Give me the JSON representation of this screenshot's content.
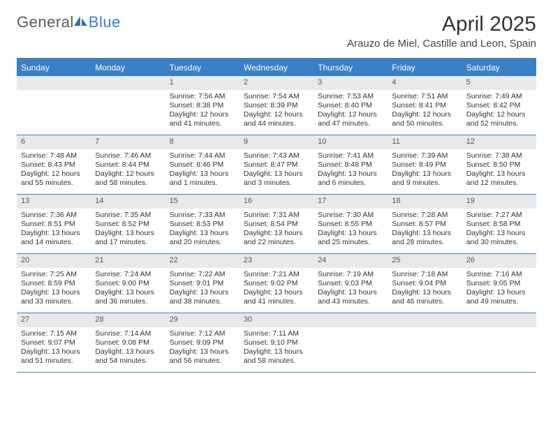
{
  "logo": {
    "text_general": "General",
    "text_blue": "Blue"
  },
  "title": "April 2025",
  "location": "Arauzo de Miel, Castille and Leon, Spain",
  "colors": {
    "header_bar": "#3b7fc4",
    "day_number_bg": "#e7e9eb",
    "text": "#333333",
    "logo_gray": "#5a5a5a",
    "logo_blue": "#3b7fc4",
    "background": "#ffffff"
  },
  "day_names": [
    "Sunday",
    "Monday",
    "Tuesday",
    "Wednesday",
    "Thursday",
    "Friday",
    "Saturday"
  ],
  "weeks": [
    [
      {
        "blank": true
      },
      {
        "blank": true
      },
      {
        "n": "1",
        "sunrise": "7:56 AM",
        "sunset": "8:38 PM",
        "daylight_h": 12,
        "daylight_m": 41
      },
      {
        "n": "2",
        "sunrise": "7:54 AM",
        "sunset": "8:39 PM",
        "daylight_h": 12,
        "daylight_m": 44
      },
      {
        "n": "3",
        "sunrise": "7:53 AM",
        "sunset": "8:40 PM",
        "daylight_h": 12,
        "daylight_m": 47
      },
      {
        "n": "4",
        "sunrise": "7:51 AM",
        "sunset": "8:41 PM",
        "daylight_h": 12,
        "daylight_m": 50
      },
      {
        "n": "5",
        "sunrise": "7:49 AM",
        "sunset": "8:42 PM",
        "daylight_h": 12,
        "daylight_m": 52
      }
    ],
    [
      {
        "n": "6",
        "sunrise": "7:48 AM",
        "sunset": "8:43 PM",
        "daylight_h": 12,
        "daylight_m": 55
      },
      {
        "n": "7",
        "sunrise": "7:46 AM",
        "sunset": "8:44 PM",
        "daylight_h": 12,
        "daylight_m": 58
      },
      {
        "n": "8",
        "sunrise": "7:44 AM",
        "sunset": "8:46 PM",
        "daylight_h": 13,
        "daylight_m": 1
      },
      {
        "n": "9",
        "sunrise": "7:43 AM",
        "sunset": "8:47 PM",
        "daylight_h": 13,
        "daylight_m": 3
      },
      {
        "n": "10",
        "sunrise": "7:41 AM",
        "sunset": "8:48 PM",
        "daylight_h": 13,
        "daylight_m": 6
      },
      {
        "n": "11",
        "sunrise": "7:39 AM",
        "sunset": "8:49 PM",
        "daylight_h": 13,
        "daylight_m": 9
      },
      {
        "n": "12",
        "sunrise": "7:38 AM",
        "sunset": "8:50 PM",
        "daylight_h": 13,
        "daylight_m": 12
      }
    ],
    [
      {
        "n": "13",
        "sunrise": "7:36 AM",
        "sunset": "8:51 PM",
        "daylight_h": 13,
        "daylight_m": 14
      },
      {
        "n": "14",
        "sunrise": "7:35 AM",
        "sunset": "8:52 PM",
        "daylight_h": 13,
        "daylight_m": 17
      },
      {
        "n": "15",
        "sunrise": "7:33 AM",
        "sunset": "8:53 PM",
        "daylight_h": 13,
        "daylight_m": 20
      },
      {
        "n": "16",
        "sunrise": "7:31 AM",
        "sunset": "8:54 PM",
        "daylight_h": 13,
        "daylight_m": 22
      },
      {
        "n": "17",
        "sunrise": "7:30 AM",
        "sunset": "8:55 PM",
        "daylight_h": 13,
        "daylight_m": 25
      },
      {
        "n": "18",
        "sunrise": "7:28 AM",
        "sunset": "8:57 PM",
        "daylight_h": 13,
        "daylight_m": 28
      },
      {
        "n": "19",
        "sunrise": "7:27 AM",
        "sunset": "8:58 PM",
        "daylight_h": 13,
        "daylight_m": 30
      }
    ],
    [
      {
        "n": "20",
        "sunrise": "7:25 AM",
        "sunset": "8:59 PM",
        "daylight_h": 13,
        "daylight_m": 33
      },
      {
        "n": "21",
        "sunrise": "7:24 AM",
        "sunset": "9:00 PM",
        "daylight_h": 13,
        "daylight_m": 36
      },
      {
        "n": "22",
        "sunrise": "7:22 AM",
        "sunset": "9:01 PM",
        "daylight_h": 13,
        "daylight_m": 38
      },
      {
        "n": "23",
        "sunrise": "7:21 AM",
        "sunset": "9:02 PM",
        "daylight_h": 13,
        "daylight_m": 41
      },
      {
        "n": "24",
        "sunrise": "7:19 AM",
        "sunset": "9:03 PM",
        "daylight_h": 13,
        "daylight_m": 43
      },
      {
        "n": "25",
        "sunrise": "7:18 AM",
        "sunset": "9:04 PM",
        "daylight_h": 13,
        "daylight_m": 46
      },
      {
        "n": "26",
        "sunrise": "7:16 AM",
        "sunset": "9:05 PM",
        "daylight_h": 13,
        "daylight_m": 49
      }
    ],
    [
      {
        "n": "27",
        "sunrise": "7:15 AM",
        "sunset": "9:07 PM",
        "daylight_h": 13,
        "daylight_m": 51
      },
      {
        "n": "28",
        "sunrise": "7:14 AM",
        "sunset": "9:08 PM",
        "daylight_h": 13,
        "daylight_m": 54
      },
      {
        "n": "29",
        "sunrise": "7:12 AM",
        "sunset": "9:09 PM",
        "daylight_h": 13,
        "daylight_m": 56
      },
      {
        "n": "30",
        "sunrise": "7:11 AM",
        "sunset": "9:10 PM",
        "daylight_h": 13,
        "daylight_m": 58
      },
      {
        "blank": true
      },
      {
        "blank": true
      },
      {
        "blank": true
      }
    ]
  ],
  "labels": {
    "sunrise_prefix": "Sunrise: ",
    "sunset_prefix": "Sunset: ",
    "daylight_prefix": "Daylight: ",
    "hours_word": " hours",
    "and_word": "and ",
    "minutes_word": " minutes."
  }
}
